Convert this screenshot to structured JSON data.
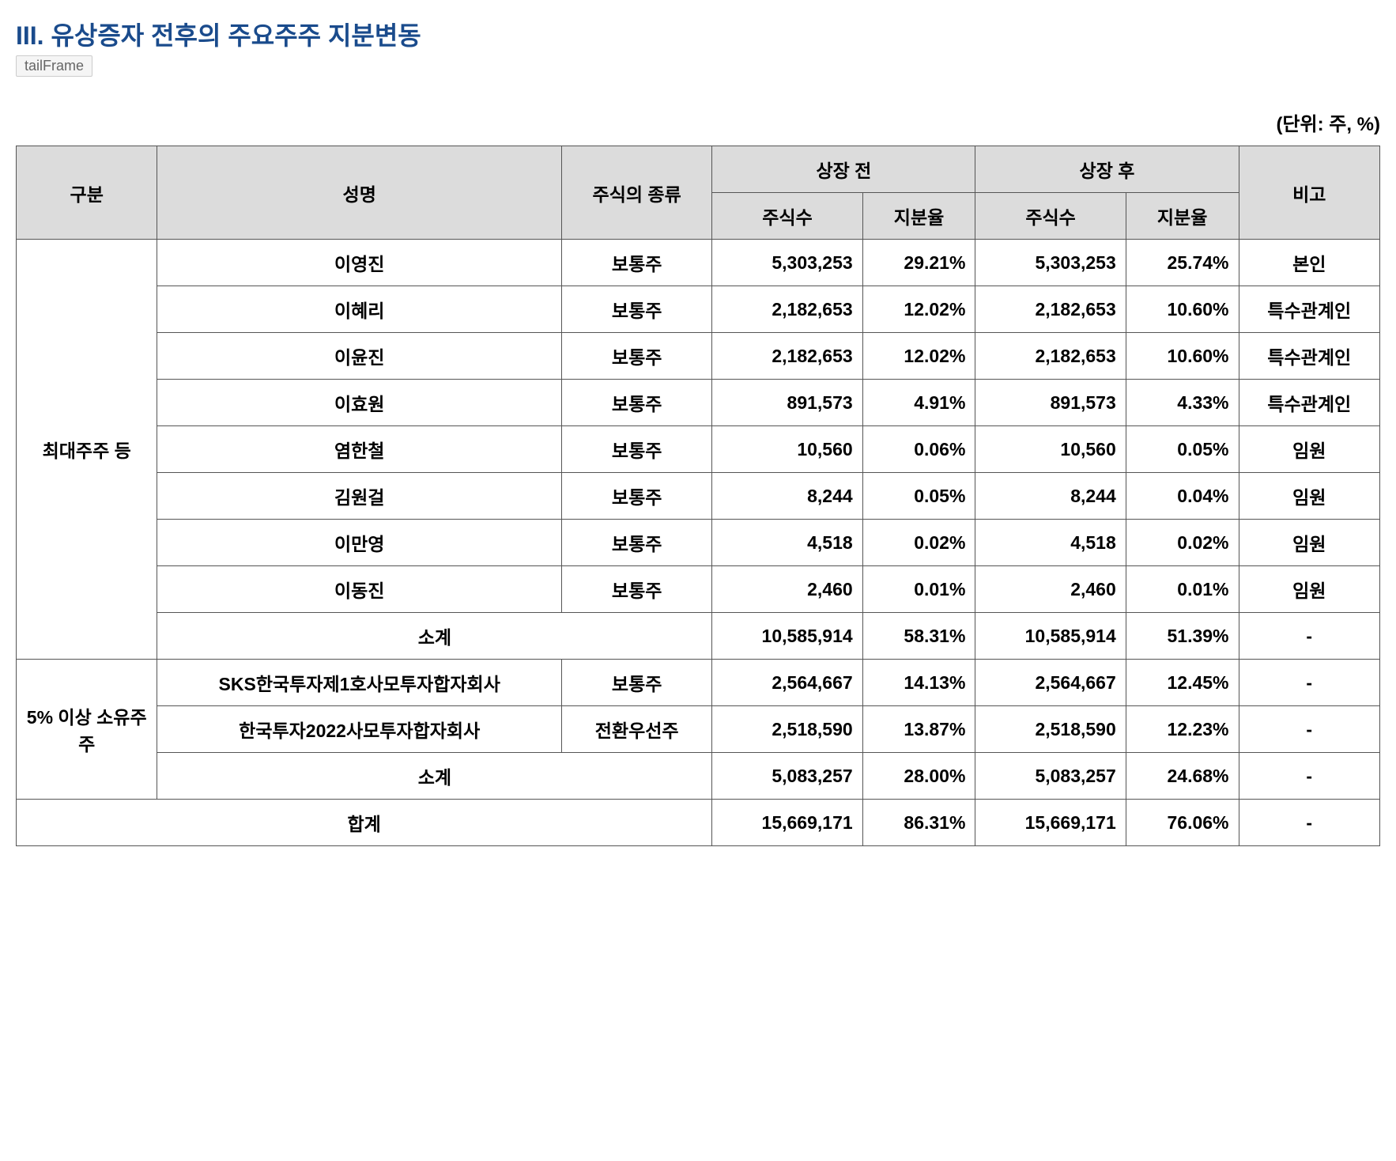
{
  "title": "III. 유상증자 전후의 주요주주 지분변동",
  "badge": "tailFrame",
  "unit": "(단위: 주, %)",
  "headers": {
    "category": "구분",
    "name": "성명",
    "stockType": "주식의 종류",
    "before": "상장 전",
    "after": "상장 후",
    "shares": "주식수",
    "percent": "지분율",
    "note": "비고"
  },
  "groups": [
    {
      "label": "최대주주 등",
      "rows": [
        {
          "name": "이영진",
          "type": "보통주",
          "beforeShares": "5,303,253",
          "beforePct": "29.21%",
          "afterShares": "5,303,253",
          "afterPct": "25.74%",
          "note": "본인"
        },
        {
          "name": "이혜리",
          "type": "보통주",
          "beforeShares": "2,182,653",
          "beforePct": "12.02%",
          "afterShares": "2,182,653",
          "afterPct": "10.60%",
          "note": "특수관계인"
        },
        {
          "name": "이윤진",
          "type": "보통주",
          "beforeShares": "2,182,653",
          "beforePct": "12.02%",
          "afterShares": "2,182,653",
          "afterPct": "10.60%",
          "note": "특수관계인"
        },
        {
          "name": "이효원",
          "type": "보통주",
          "beforeShares": "891,573",
          "beforePct": "4.91%",
          "afterShares": "891,573",
          "afterPct": "4.33%",
          "note": "특수관계인"
        },
        {
          "name": "염한철",
          "type": "보통주",
          "beforeShares": "10,560",
          "beforePct": "0.06%",
          "afterShares": "10,560",
          "afterPct": "0.05%",
          "note": "임원"
        },
        {
          "name": "김원걸",
          "type": "보통주",
          "beforeShares": "8,244",
          "beforePct": "0.05%",
          "afterShares": "8,244",
          "afterPct": "0.04%",
          "note": "임원"
        },
        {
          "name": "이만영",
          "type": "보통주",
          "beforeShares": "4,518",
          "beforePct": "0.02%",
          "afterShares": "4,518",
          "afterPct": "0.02%",
          "note": "임원"
        },
        {
          "name": "이동진",
          "type": "보통주",
          "beforeShares": "2,460",
          "beforePct": "0.01%",
          "afterShares": "2,460",
          "afterPct": "0.01%",
          "note": "임원"
        }
      ],
      "subtotal": {
        "label": "소계",
        "beforeShares": "10,585,914",
        "beforePct": "58.31%",
        "afterShares": "10,585,914",
        "afterPct": "51.39%",
        "note": "-"
      }
    },
    {
      "label": "5% 이상 소유주주",
      "rows": [
        {
          "name": "SKS한국투자제1호사모투자합자회사",
          "type": "보통주",
          "beforeShares": "2,564,667",
          "beforePct": "14.13%",
          "afterShares": "2,564,667",
          "afterPct": "12.45%",
          "note": "-"
        },
        {
          "name": "한국투자2022사모투자합자회사",
          "type": "전환우선주",
          "beforeShares": "2,518,590",
          "beforePct": "13.87%",
          "afterShares": "2,518,590",
          "afterPct": "12.23%",
          "note": "-"
        }
      ],
      "subtotal": {
        "label": "소계",
        "beforeShares": "5,083,257",
        "beforePct": "28.00%",
        "afterShares": "5,083,257",
        "afterPct": "24.68%",
        "note": "-"
      }
    }
  ],
  "total": {
    "label": "합계",
    "beforeShares": "15,669,171",
    "beforePct": "86.31%",
    "afterShares": "15,669,171",
    "afterPct": "76.06%",
    "note": "-"
  }
}
